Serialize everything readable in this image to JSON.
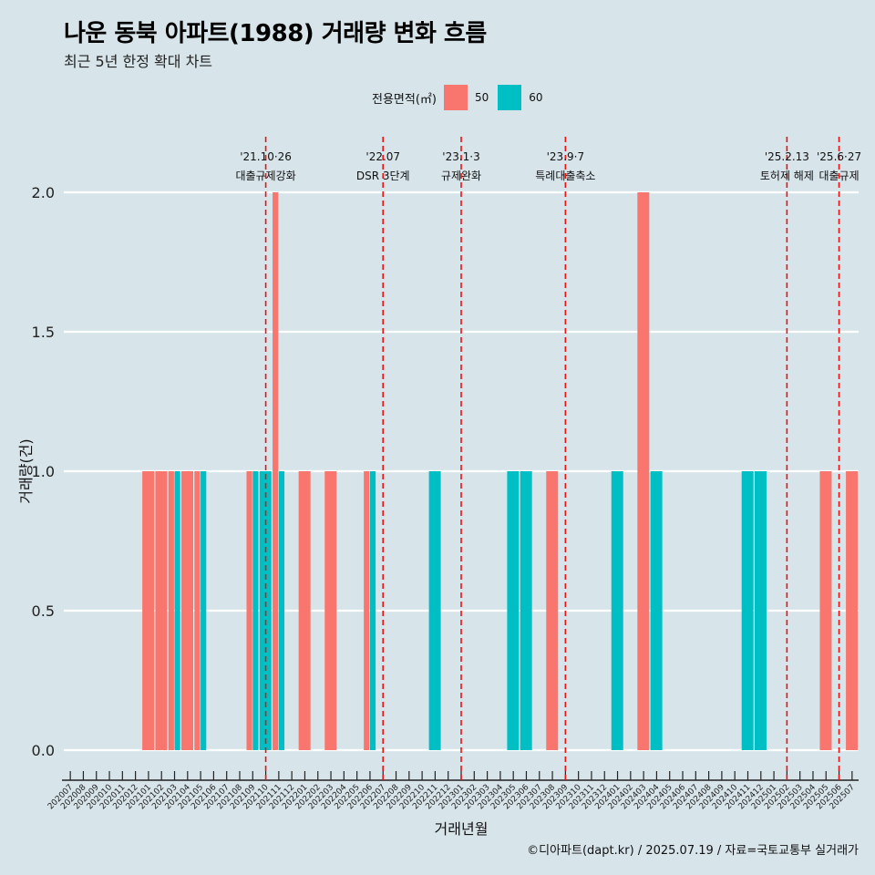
{
  "chart_data": {
    "type": "bar",
    "title": "나운 동북 아파트(1988) 거래량 변화 흐름",
    "subtitle": "최근 5년 한정 확대 차트",
    "xlabel": "거래년월",
    "ylabel": "거래량(건)",
    "ylim": [
      0,
      2.0
    ],
    "yticks": [
      "0.0",
      "0.5",
      "1.0",
      "1.5",
      "2.0"
    ],
    "grid": "horizontal",
    "legend": {
      "title": "전용면적(㎡)",
      "position": "top"
    },
    "categories": [
      "202007",
      "202008",
      "202009",
      "202010",
      "202011",
      "202012",
      "202101",
      "202102",
      "202103",
      "202104",
      "202105",
      "202106",
      "202107",
      "202108",
      "202109",
      "202110",
      "202111",
      "202112",
      "202201",
      "202202",
      "202203",
      "202204",
      "202205",
      "202206",
      "202207",
      "202208",
      "202209",
      "202210",
      "202211",
      "202212",
      "202301",
      "202302",
      "202303",
      "202304",
      "202305",
      "202306",
      "202307",
      "202308",
      "202309",
      "202310",
      "202311",
      "202312",
      "202401",
      "202402",
      "202403",
      "202404",
      "202405",
      "202406",
      "202407",
      "202408",
      "202409",
      "202410",
      "202411",
      "202412",
      "202501",
      "202502",
      "202503",
      "202504",
      "202505",
      "202506",
      "202507"
    ],
    "series": [
      {
        "name": "50",
        "color": "#f8766d",
        "values": [
          0,
          0,
          0,
          0,
          0,
          0,
          1,
          1,
          1,
          1,
          1,
          0,
          0,
          0,
          1,
          0,
          2,
          0,
          1,
          0,
          1,
          0,
          0,
          1,
          0,
          0,
          0,
          0,
          0,
          0,
          0,
          0,
          0,
          0,
          0,
          0,
          0,
          1,
          0,
          0,
          0,
          0,
          0,
          0,
          2,
          0,
          0,
          0,
          0,
          0,
          0,
          0,
          0,
          0,
          0,
          0,
          0,
          0,
          1,
          0,
          1
        ]
      },
      {
        "name": "60",
        "color": "#00bfc4",
        "values": [
          0,
          0,
          0,
          0,
          0,
          0,
          0,
          0,
          1,
          0,
          1,
          0,
          0,
          0,
          1,
          1,
          1,
          0,
          0,
          0,
          0,
          0,
          0,
          1,
          0,
          0,
          0,
          0,
          1,
          0,
          0,
          0,
          0,
          0,
          1,
          1,
          0,
          0,
          0,
          0,
          0,
          0,
          1,
          0,
          0,
          1,
          0,
          0,
          0,
          0,
          0,
          0,
          1,
          1,
          0,
          0,
          0,
          0,
          0,
          0,
          0
        ]
      }
    ],
    "annotations": [
      {
        "month": "202110",
        "date": "'21.10·26",
        "label": "대출규제강화",
        "color": "#ee1111"
      },
      {
        "month": "202207",
        "date": "'22.07",
        "label": "DSR 3단계",
        "color": "#ee1111"
      },
      {
        "month": "202301",
        "date": "'23.1·3",
        "label": "규제완화",
        "color": "#ee1111"
      },
      {
        "month": "202309",
        "date": "'23.9·7",
        "label": "특례대출축소",
        "color": "#ee1111"
      },
      {
        "month": "202502",
        "date": "'25.2.13",
        "label": "토허제 해제",
        "color": "#ee1111"
      },
      {
        "month": "202506",
        "date": "'25.6·27",
        "label": "대출규제",
        "color": "#ee1111"
      }
    ],
    "caption": "©디아파트(dapt.kr) / 2025.07.19 / 자료=국토교통부 실거래가"
  }
}
